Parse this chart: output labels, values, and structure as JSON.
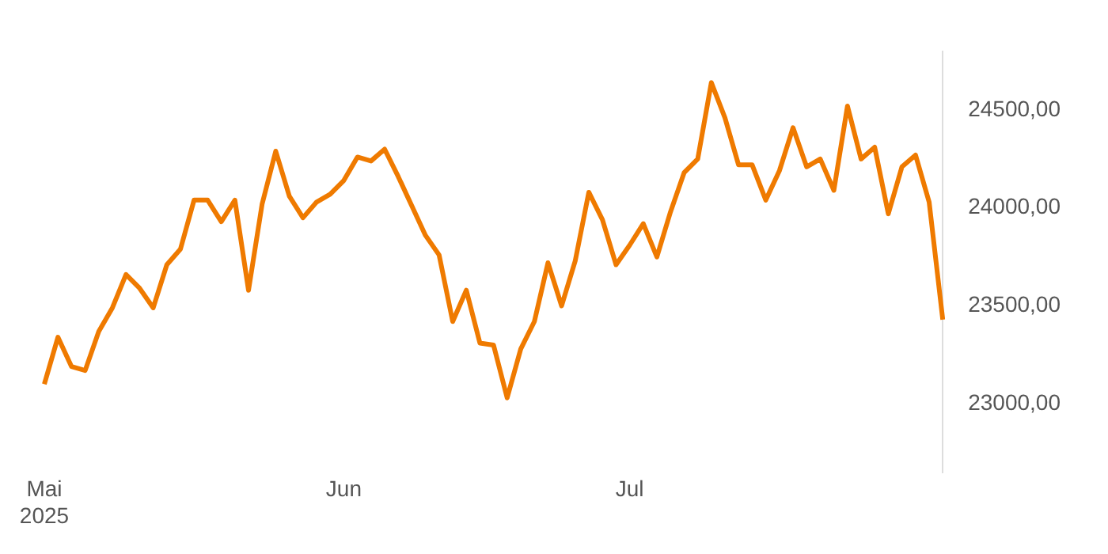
{
  "chart_data": {
    "type": "line",
    "categories": [
      "Mai\n2025",
      null,
      null,
      null,
      null,
      null,
      null,
      null,
      null,
      null,
      null,
      null,
      null,
      null,
      null,
      null,
      null,
      null,
      null,
      null,
      null,
      null,
      "Jun",
      null,
      null,
      null,
      null,
      null,
      null,
      null,
      null,
      null,
      null,
      null,
      null,
      null,
      null,
      null,
      null,
      null,
      null,
      null,
      null,
      "Jul",
      null,
      null,
      null,
      null,
      null,
      null,
      null,
      null,
      null,
      null,
      null,
      null,
      null,
      null,
      null,
      null,
      null,
      null,
      null,
      null,
      null,
      null,
      null
    ],
    "series": [
      {
        "color": "#ef7a00",
        "values": [
          23100,
          23340,
          23190,
          23170,
          23370,
          23490,
          23660,
          23590,
          23490,
          23710,
          23790,
          24040,
          24040,
          23930,
          24040,
          23580,
          24020,
          24290,
          24060,
          23950,
          24030,
          24070,
          24140,
          24260,
          24240,
          24300,
          24160,
          24010,
          23860,
          23760,
          23420,
          23580,
          23310,
          23300,
          23030,
          23280,
          23420,
          23720,
          23500,
          23730,
          24080,
          23940,
          23710,
          23810,
          23920,
          23750,
          23980,
          24180,
          24250,
          24640,
          24460,
          24220,
          24220,
          24040,
          24190,
          24410,
          24210,
          24250,
          24090,
          24520,
          24250,
          24310,
          23970,
          24210,
          24270,
          24030,
          23430
        ]
      }
    ],
    "ylim": [
      22650,
      24800
    ],
    "yticks": [
      {
        "value": 23000,
        "label": "23000,00"
      },
      {
        "value": 23500,
        "label": "23500,00"
      },
      {
        "value": 24000,
        "label": "24000,00"
      },
      {
        "value": 24500,
        "label": "24500,00"
      }
    ],
    "grid": false,
    "legend": false,
    "marker": "none",
    "line_style": "solid"
  }
}
